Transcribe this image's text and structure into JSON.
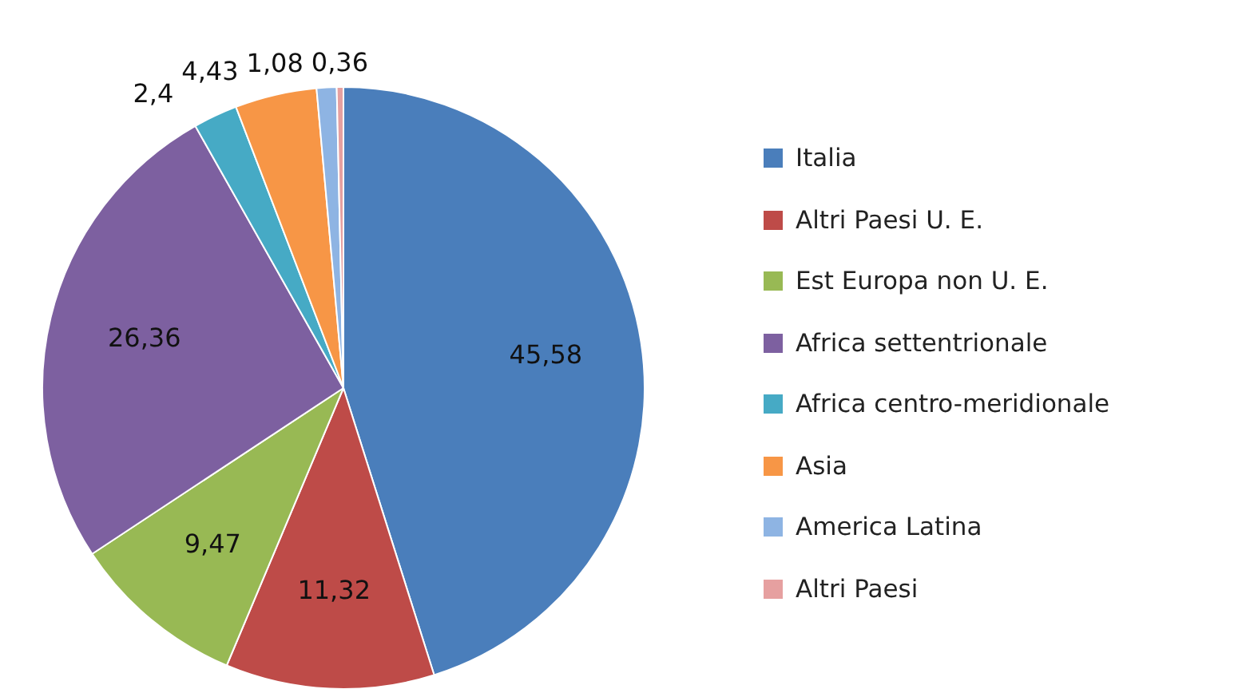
{
  "chart_data": {
    "type": "pie",
    "categories": [
      "Italia",
      "Altri Paesi U. E.",
      "Est Europa non U. E.",
      "Africa settentrionale",
      "Africa centro-meridionale",
      "Asia",
      "America Latina",
      "Altri Paesi"
    ],
    "values": [
      45.58,
      11.32,
      9.47,
      26.36,
      2.4,
      4.43,
      1.08,
      0.36
    ],
    "colors": [
      "#4a7ebb",
      "#be4b48",
      "#98b954",
      "#7d60a0",
      "#46aac5",
      "#f79646",
      "#8eb4e3",
      "#e6a0a0"
    ],
    "value_labels": [
      "45,58",
      "11,32",
      "9,47",
      "26,36",
      "2,4",
      "4,43",
      "1,08",
      "0,36"
    ],
    "legend": "right"
  }
}
